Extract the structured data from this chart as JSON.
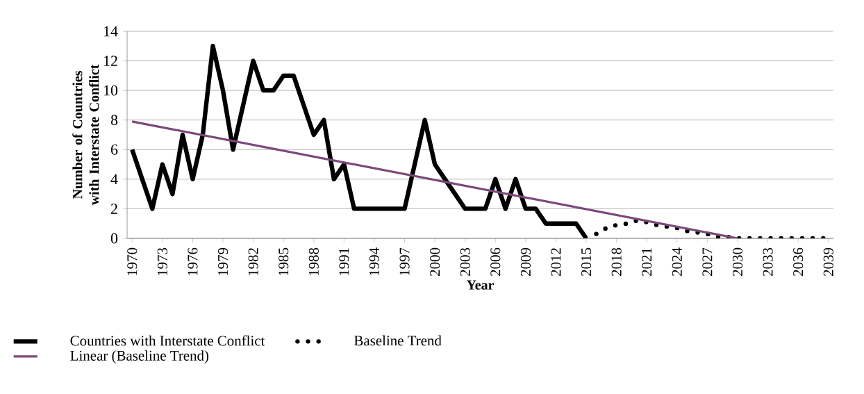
{
  "chart_data": {
    "type": "line",
    "xlabel": "Year",
    "ylabel": "Number of Countries with Interstate Conflict",
    "xlim": [
      1969.5,
      2039.5
    ],
    "xticks": [
      1970,
      1973,
      1976,
      1979,
      1982,
      1985,
      1988,
      1991,
      1994,
      1997,
      2000,
      2003,
      2006,
      2009,
      2012,
      2015,
      2018,
      2021,
      2024,
      2027,
      2030,
      2033,
      2036,
      2039
    ],
    "ylim": [
      0,
      14
    ],
    "yticks": [
      0,
      2,
      4,
      6,
      8,
      10,
      12,
      14
    ],
    "grid": "y",
    "legend": "bottom",
    "marker": "none",
    "series": [
      {
        "name": "Countries with Interstate Conflict",
        "color": "#000000",
        "line_style": "solid",
        "x": [
          1970,
          1971,
          1972,
          1973,
          1974,
          1975,
          1976,
          1977,
          1978,
          1979,
          1980,
          1981,
          1982,
          1983,
          1984,
          1985,
          1986,
          1987,
          1988,
          1989,
          1990,
          1991,
          1992,
          1993,
          1994,
          1995,
          1996,
          1997,
          1998,
          1999,
          2000,
          2001,
          2002,
          2003,
          2004,
          2005,
          2006,
          2007,
          2008,
          2009,
          2010,
          2011,
          2012,
          2013,
          2014,
          2015
        ],
        "values": [
          6,
          4,
          2,
          5,
          3,
          7,
          4,
          7,
          13,
          10,
          6,
          9,
          12,
          10,
          10,
          11,
          11,
          9,
          7,
          8,
          4,
          5,
          2,
          2,
          2,
          2,
          2,
          2,
          5,
          8,
          5,
          4,
          3,
          2,
          2,
          2,
          4,
          2,
          4,
          2,
          2,
          1,
          1,
          1,
          1,
          0
        ]
      },
      {
        "name": "Baseline Trend",
        "color": "#000000",
        "line_style": "dotted",
        "x": [
          2016,
          2017,
          2018,
          2019,
          2020,
          2021,
          2022,
          2023,
          2024,
          2025,
          2026,
          2027,
          2028,
          2029,
          2030,
          2031,
          2032,
          2033,
          2034,
          2035,
          2036,
          2037,
          2038,
          2039
        ],
        "values": [
          0.3,
          0.7,
          0.9,
          1.0,
          1.2,
          1.1,
          0.9,
          0.8,
          0.7,
          0.5,
          0.4,
          0.3,
          0.1,
          0.1,
          0,
          0,
          0,
          0,
          0,
          0,
          0,
          0,
          0,
          0
        ]
      },
      {
        "name": "Linear (Baseline Trend)",
        "color": "#7b4a7a",
        "line_style": "solid",
        "x": [
          1970,
          2030
        ],
        "values": [
          7.9,
          0
        ]
      }
    ]
  }
}
